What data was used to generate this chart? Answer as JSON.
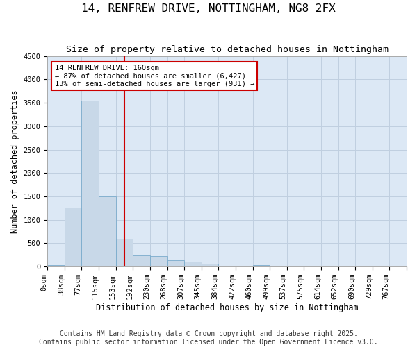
{
  "title_line1": "14, RENFREW DRIVE, NOTTINGHAM, NG8 2FX",
  "title_line2": "Size of property relative to detached houses in Nottingham",
  "xlabel": "Distribution of detached houses by size in Nottingham",
  "ylabel": "Number of detached properties",
  "bin_labels": [
    "0sqm",
    "38sqm",
    "77sqm",
    "115sqm",
    "153sqm",
    "192sqm",
    "230sqm",
    "268sqm",
    "307sqm",
    "345sqm",
    "384sqm",
    "422sqm",
    "460sqm",
    "499sqm",
    "537sqm",
    "575sqm",
    "614sqm",
    "652sqm",
    "690sqm",
    "729sqm",
    "767sqm"
  ],
  "bar_values": [
    30,
    1260,
    3540,
    1500,
    590,
    240,
    225,
    140,
    100,
    60,
    0,
    0,
    30,
    0,
    0,
    0,
    0,
    0,
    0,
    0,
    0
  ],
  "bar_color": "#c8d8e8",
  "bar_edgecolor": "#7aabcc",
  "vertical_line_x": 4.5,
  "vertical_line_color": "#cc0000",
  "annotation_text": "14 RENFREW DRIVE: 160sqm\n← 87% of detached houses are smaller (6,427)\n13% of semi-detached houses are larger (931) →",
  "annotation_box_color": "#cc0000",
  "ylim": [
    0,
    4500
  ],
  "yticks": [
    0,
    500,
    1000,
    1500,
    2000,
    2500,
    3000,
    3500,
    4000,
    4500
  ],
  "grid_color": "#c0cfe0",
  "background_color": "#dce8f5",
  "footer_line1": "Contains HM Land Registry data © Crown copyright and database right 2025.",
  "footer_line2": "Contains public sector information licensed under the Open Government Licence v3.0.",
  "title_fontsize": 11.5,
  "subtitle_fontsize": 9.5,
  "axis_label_fontsize": 8.5,
  "tick_fontsize": 7.5,
  "footer_fontsize": 7
}
